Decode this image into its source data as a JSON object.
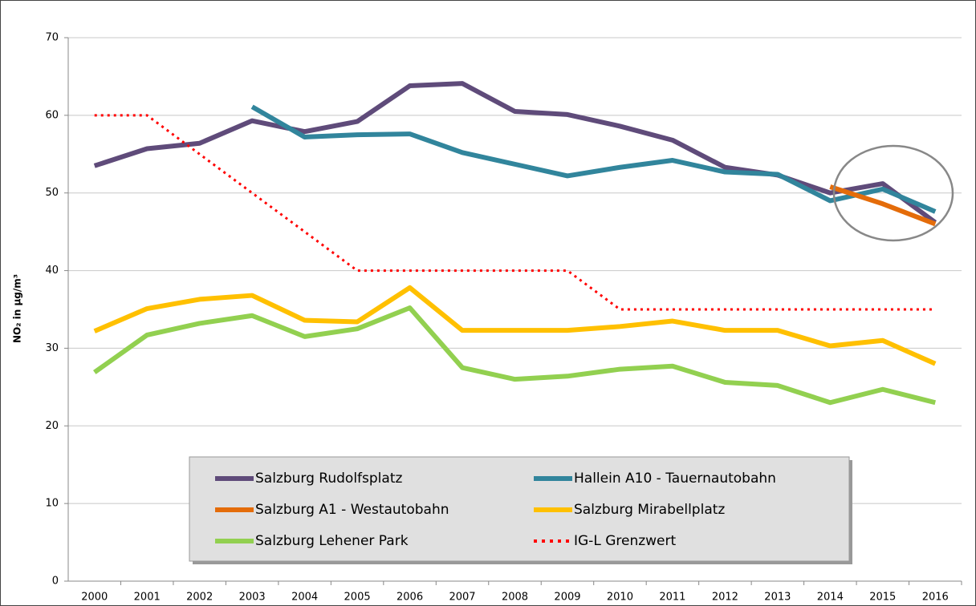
{
  "chart_data": {
    "type": "line",
    "y_label": "NO₂ in µg/m³",
    "categories": [
      "2000",
      "2001",
      "2002",
      "2003",
      "2004",
      "2005",
      "2006",
      "2007",
      "2008",
      "2009",
      "2010",
      "2011",
      "2012",
      "2013",
      "2014",
      "2015",
      "2016"
    ],
    "ylim": [
      0,
      70
    ],
    "yticks": [
      0,
      10,
      20,
      30,
      40,
      50,
      60,
      70
    ],
    "grid": true,
    "series": [
      {
        "name": "Salzburg Rudolfsplatz",
        "color": "#5f4b7a",
        "values": [
          53.5,
          55.7,
          56.4,
          59.3,
          57.9,
          59.2,
          63.8,
          64.1,
          60.5,
          60.1,
          58.6,
          56.8,
          53.3,
          52.3,
          50.0,
          51.2,
          46.2
        ]
      },
      {
        "name": "Hallein A10 - Tauernautobahn",
        "color": "#31859c",
        "values": [
          null,
          null,
          null,
          61.1,
          57.2,
          57.5,
          57.6,
          55.2,
          53.7,
          52.2,
          53.3,
          54.2,
          52.7,
          52.4,
          49.0,
          50.5,
          47.6
        ]
      },
      {
        "name": "Salzburg A1 - Westautobahn",
        "color": "#e46c0a",
        "values": [
          null,
          null,
          null,
          null,
          null,
          null,
          null,
          null,
          null,
          null,
          null,
          null,
          null,
          null,
          50.8,
          48.6,
          46.0
        ]
      },
      {
        "name": "Salzburg Mirabellplatz",
        "color": "#ffc000",
        "values": [
          32.2,
          35.1,
          36.3,
          36.8,
          33.6,
          33.4,
          37.8,
          32.3,
          32.3,
          32.3,
          32.8,
          33.5,
          32.3,
          32.3,
          30.3,
          31.0,
          28.0
        ]
      },
      {
        "name": "Salzburg Lehener Park",
        "color": "#92d050",
        "values": [
          26.9,
          31.7,
          33.2,
          34.2,
          31.5,
          32.5,
          35.2,
          27.5,
          26.0,
          26.4,
          27.3,
          27.7,
          25.6,
          25.2,
          23.0,
          24.7,
          23.0
        ]
      },
      {
        "name": "IG-L Grenzwert",
        "color": "#ff0000",
        "dashed": true,
        "values": [
          60,
          60,
          55,
          50,
          45,
          40,
          40,
          40,
          40,
          40,
          35,
          35,
          35,
          35,
          35,
          35,
          35
        ]
      }
    ]
  }
}
